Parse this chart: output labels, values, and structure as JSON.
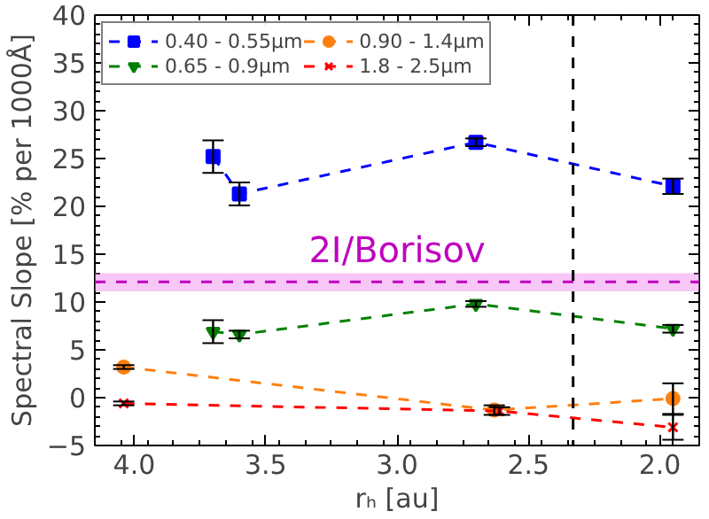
{
  "chart_data": {
    "type": "line",
    "xlabel": "rₕ [au]",
    "ylabel": "Spectral Slope [% per 1000Å]",
    "xlim": [
      4.15,
      1.85
    ],
    "ylim": [
      -5,
      40
    ],
    "xticks": [
      {
        "value": 4.0,
        "label": "4.0"
      },
      {
        "value": 3.5,
        "label": "3.5"
      },
      {
        "value": 3.0,
        "label": "3.0"
      },
      {
        "value": 2.5,
        "label": "2.5"
      },
      {
        "value": 2.0,
        "label": "2.0"
      }
    ],
    "yticks": [
      {
        "value": -5,
        "label": "−5"
      },
      0,
      5,
      10,
      15,
      20,
      25,
      30,
      35,
      40
    ],
    "grid": false,
    "legend": "top left",
    "line_style": "dashed",
    "series": [
      {
        "name": "0.40 - 0.55μm",
        "color": "#0000ff",
        "marker": "square",
        "x": [
          3.7,
          3.6,
          2.7,
          1.95
        ],
        "values": [
          25.2,
          21.3,
          26.7,
          22.1
        ],
        "errors": [
          1.7,
          1.2,
          0.4,
          0.8
        ]
      },
      {
        "name": "0.65 - 0.9μm",
        "color": "#008000",
        "marker": "triangle",
        "x": [
          3.7,
          3.6,
          2.7,
          1.95
        ],
        "values": [
          6.9,
          6.6,
          9.8,
          7.2
        ],
        "errors": [
          1.2,
          0.4,
          0.3,
          0.4
        ]
      },
      {
        "name": "0.90 - 1.4μm",
        "color": "#ff7f0e",
        "marker": "circle",
        "x": [
          4.04,
          2.63,
          1.95
        ],
        "values": [
          3.2,
          -1.3,
          -0.1
        ],
        "errors": [
          0.2,
          0.5,
          1.6
        ]
      },
      {
        "name": "1.8 - 2.5μm",
        "color": "#ff0000",
        "marker": "cross",
        "x": [
          4.04,
          2.61,
          1.95
        ],
        "values": [
          -0.6,
          -1.4,
          -3.1
        ],
        "errors": [
          0.2,
          0.4,
          1.3
        ]
      }
    ],
    "bands": [
      {
        "axis": "y",
        "from": 11.1,
        "to": 13.0,
        "color": "#ee82ee"
      }
    ],
    "ref_lines": [
      {
        "axis": "y",
        "value": 12.1,
        "label": "2I/Borisov",
        "color": "#bf00bf",
        "line_style": "dashed"
      },
      {
        "axis": "x",
        "value": 2.33,
        "color": "#000000",
        "line_style": "dashed"
      }
    ]
  }
}
